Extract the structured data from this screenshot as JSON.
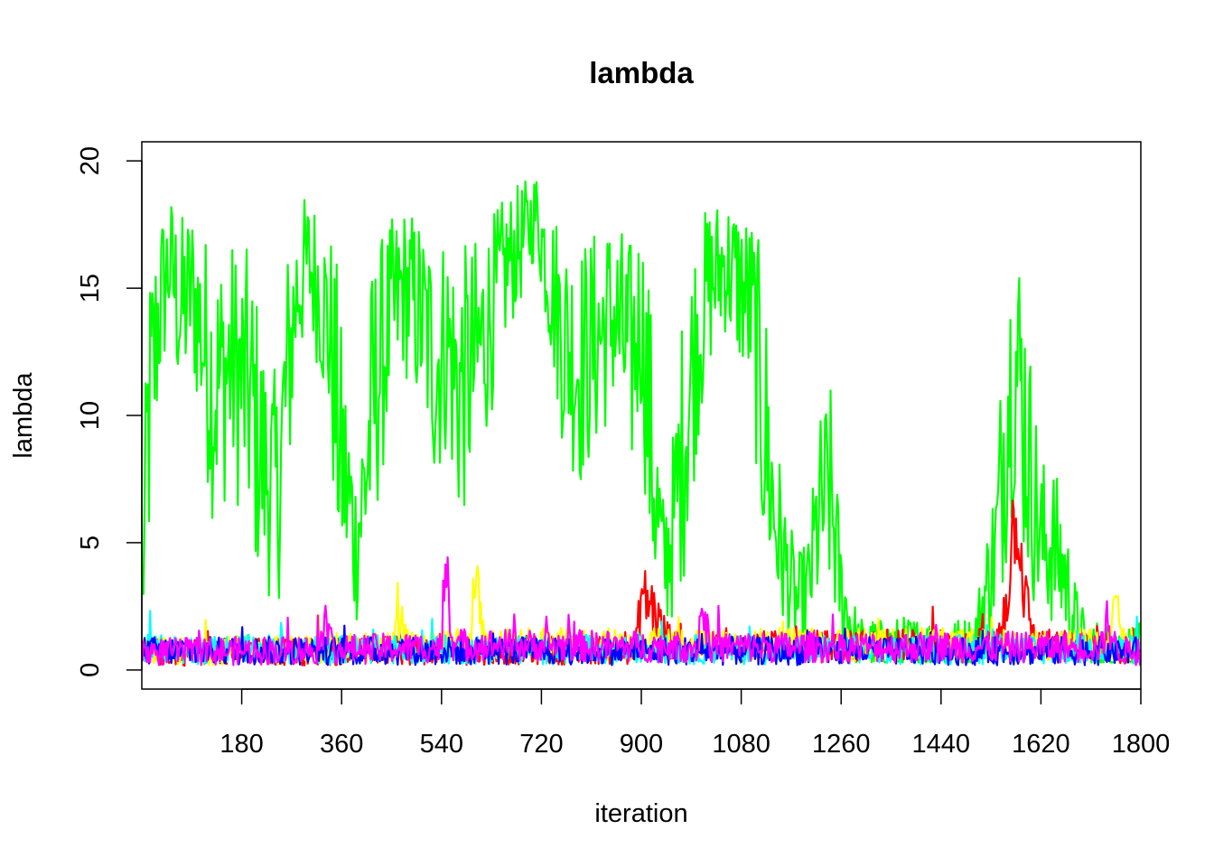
{
  "chart_data": {
    "type": "line",
    "title": "lambda",
    "xlabel": "iteration",
    "ylabel": "lambda",
    "xlim": [
      0,
      1800
    ],
    "ylim": [
      -0.75,
      20.75
    ],
    "x_ticks": [
      "180",
      "360",
      "540",
      "720",
      "900",
      "1080",
      "1260",
      "1440",
      "1620",
      "1800"
    ],
    "y_ticks": [
      "0",
      "5",
      "10",
      "15",
      "20"
    ],
    "grid": false,
    "legend": "none",
    "series": [
      {
        "color": "#00FF00",
        "style": "high",
        "segments": [
          [
            0,
            2
          ],
          [
            10,
            9
          ],
          [
            30,
            14
          ],
          [
            50,
            16
          ],
          [
            70,
            14
          ],
          [
            90,
            15
          ],
          [
            110,
            13
          ],
          [
            130,
            11
          ],
          [
            160,
            12
          ],
          [
            190,
            11
          ],
          [
            220,
            8
          ],
          [
            245,
            7
          ],
          [
            265,
            12
          ],
          [
            280,
            15
          ],
          [
            300,
            16
          ],
          [
            320,
            15
          ],
          [
            340,
            13
          ],
          [
            355,
            9
          ],
          [
            370,
            7
          ],
          [
            385,
            5
          ],
          [
            400,
            7
          ],
          [
            420,
            11
          ],
          [
            440,
            13
          ],
          [
            470,
            15
          ],
          [
            500,
            14
          ],
          [
            530,
            12
          ],
          [
            550,
            13
          ],
          [
            570,
            11
          ],
          [
            600,
            12
          ],
          [
            630,
            14
          ],
          [
            660,
            16
          ],
          [
            690,
            17
          ],
          [
            710,
            18
          ],
          [
            730,
            16
          ],
          [
            760,
            13
          ],
          [
            790,
            12
          ],
          [
            820,
            13
          ],
          [
            850,
            14
          ],
          [
            880,
            12
          ],
          [
            900,
            14
          ],
          [
            920,
            8
          ],
          [
            940,
            4
          ],
          [
            960,
            6
          ],
          [
            980,
            10
          ],
          [
            1000,
            13
          ],
          [
            1020,
            15
          ],
          [
            1050,
            16
          ],
          [
            1080,
            15
          ],
          [
            1100,
            14
          ],
          [
            1120,
            10
          ],
          [
            1140,
            6
          ],
          [
            1160,
            4
          ],
          [
            1180,
            2.5
          ],
          [
            1200,
            3
          ],
          [
            1220,
            6
          ],
          [
            1240,
            7
          ],
          [
            1260,
            3
          ],
          [
            1290,
            1
          ],
          [
            1330,
            0.9
          ],
          [
            1380,
            1
          ],
          [
            1440,
            0.9
          ],
          [
            1500,
            1
          ],
          [
            1540,
            5
          ],
          [
            1560,
            11
          ],
          [
            1580,
            12
          ],
          [
            1600,
            8
          ],
          [
            1620,
            5
          ],
          [
            1640,
            5
          ],
          [
            1660,
            4
          ],
          [
            1680,
            2
          ],
          [
            1700,
            1
          ],
          [
            1740,
            0.8
          ],
          [
            1800,
            0.8
          ]
        ]
      },
      {
        "color": "#FF0000",
        "style": "low",
        "segments": [
          [
            0,
            0.7
          ],
          [
            890,
            0.8
          ],
          [
            900,
            3
          ],
          [
            920,
            2.5
          ],
          [
            940,
            1.5
          ],
          [
            960,
            0.9
          ],
          [
            1540,
            1
          ],
          [
            1560,
            3
          ],
          [
            1575,
            7
          ],
          [
            1590,
            3
          ],
          [
            1610,
            1
          ],
          [
            1800,
            0.8
          ]
        ]
      },
      {
        "color": "#FFFF00",
        "style": "low",
        "segments": [
          [
            0,
            0.7
          ],
          [
            450,
            0.9
          ],
          [
            460,
            2.5
          ],
          [
            480,
            0.9
          ],
          [
            590,
            1
          ],
          [
            600,
            3.5
          ],
          [
            620,
            1
          ],
          [
            1740,
            1
          ],
          [
            1750,
            2.8
          ],
          [
            1770,
            1
          ],
          [
            1800,
            0.8
          ]
        ]
      },
      {
        "color": "#00FFFF",
        "style": "low",
        "segments": [
          [
            0,
            0.8
          ],
          [
            1800,
            0.8
          ]
        ]
      },
      {
        "color": "#0000FF",
        "style": "low",
        "segments": [
          [
            0,
            0.75
          ],
          [
            1800,
            0.75
          ]
        ]
      },
      {
        "color": "#FF00FF",
        "style": "low",
        "segments": [
          [
            0,
            0.7
          ],
          [
            320,
            0.8
          ],
          [
            330,
            2
          ],
          [
            345,
            0.8
          ],
          [
            540,
            0.9
          ],
          [
            550,
            4.5
          ],
          [
            560,
            1
          ],
          [
            1000,
            0.9
          ],
          [
            1010,
            2.5
          ],
          [
            1025,
            0.9
          ],
          [
            1730,
            0.9
          ],
          [
            1740,
            2
          ],
          [
            1755,
            0.8
          ],
          [
            1800,
            0.7
          ]
        ]
      }
    ]
  }
}
